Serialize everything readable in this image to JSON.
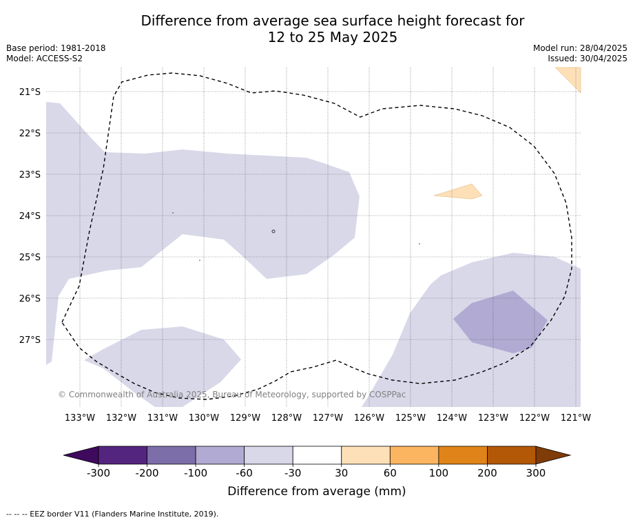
{
  "title_line1": "Difference from average sea surface height forecast for",
  "title_line2": "12 to 25 May 2025",
  "base_period": "Base period: 1981-2018",
  "model": "Model: ACCESS-S2",
  "model_run": "Model run: 28/04/2025",
  "issued": "Issued: 30/04/2025",
  "copyright": "© Commonwealth of Australia 2025, Bureau of Meteorology, supported by COSPPac",
  "footer": "--  --  -- EEZ border V11 (Flanders Marine Institute, 2019).",
  "map": {
    "lon_labels": [
      "133°W",
      "132°W",
      "131°W",
      "130°W",
      "129°W",
      "128°W",
      "127°W",
      "126°W",
      "125°W",
      "124°W",
      "123°W",
      "122°W",
      "121°W"
    ],
    "lat_labels": [
      "21°S",
      "22°S",
      "23°S",
      "24°S",
      "25°S",
      "26°S",
      "27°S"
    ]
  },
  "colorbar": {
    "label": "Difference from average (mm)",
    "ticks": [
      "-300",
      "-200",
      "-100",
      "-60",
      "-30",
      "30",
      "60",
      "100",
      "200",
      "300"
    ],
    "colors": [
      "#3f0a5e",
      "#54257f",
      "#7c6ea8",
      "#b1aad2",
      "#d8d8e9",
      "#ffffff",
      "#fde0b7",
      "#fbb560",
      "#e08318",
      "#b35806",
      "#7f3b08"
    ]
  }
}
